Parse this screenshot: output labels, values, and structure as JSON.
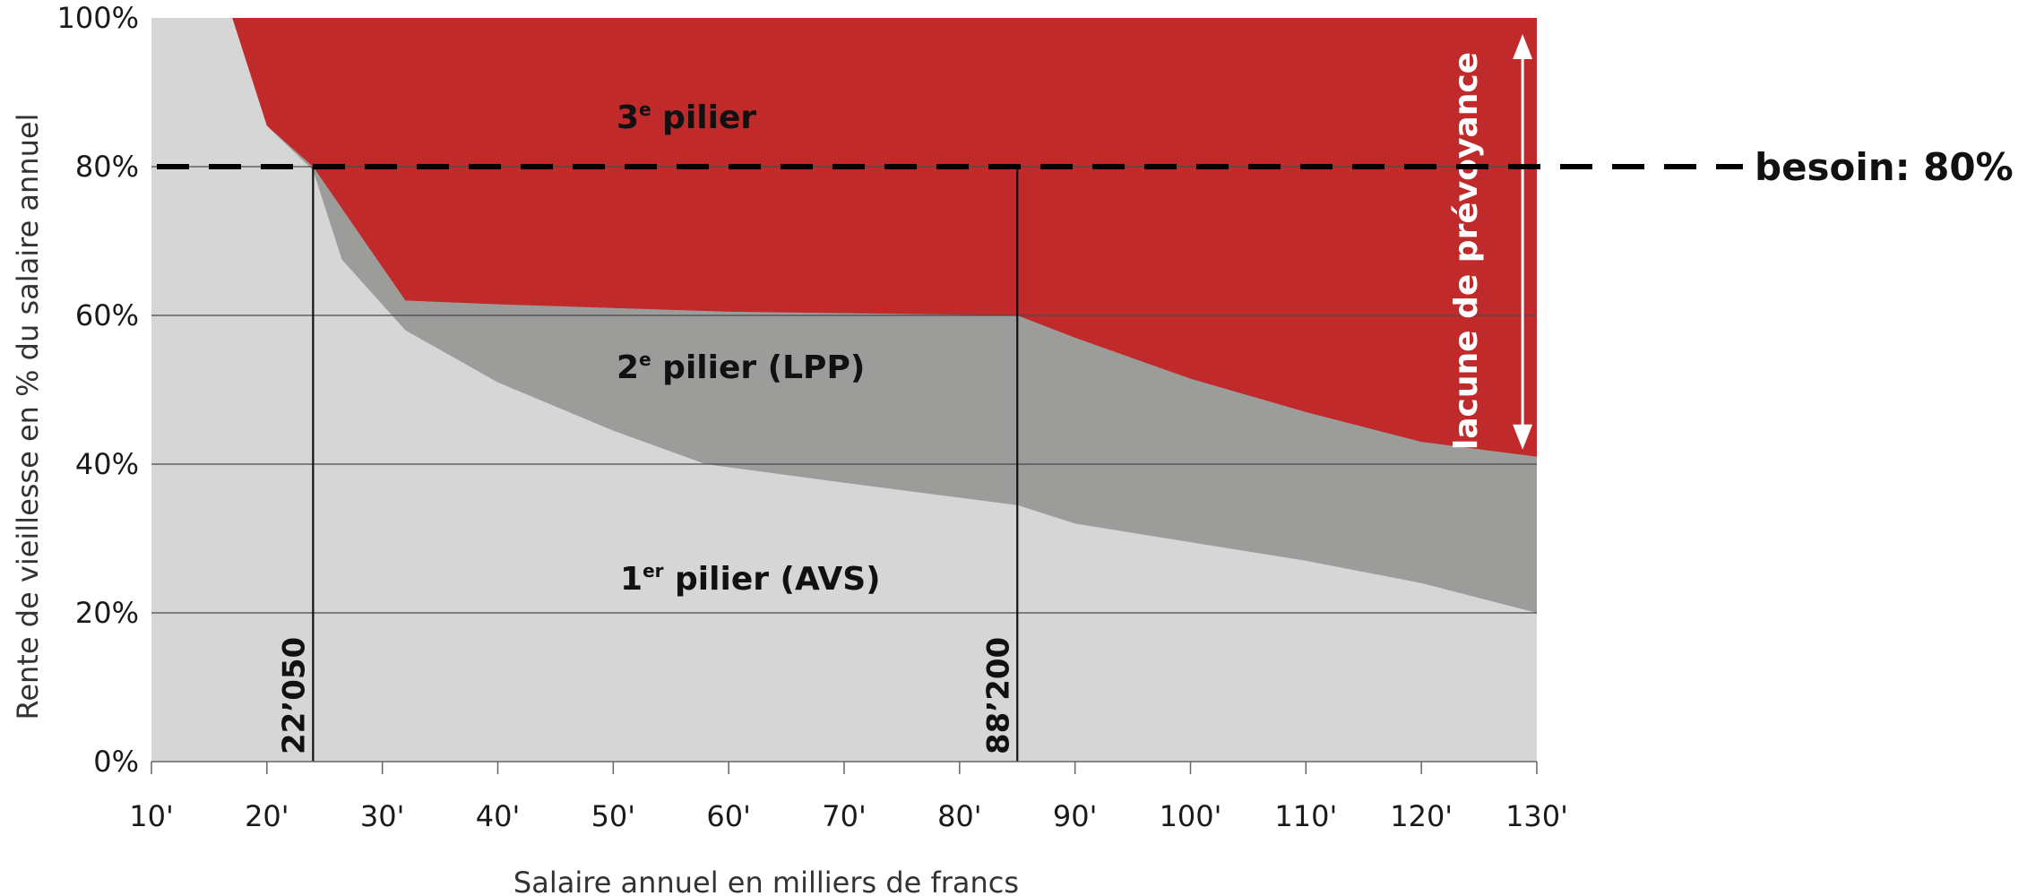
{
  "chart_data": {
    "type": "area",
    "title": "",
    "xlabel": "Salaire annuel en milliers de francs",
    "ylabel": "Rente de vieillesse en % du salaire annuel",
    "xlim": [
      10,
      130
    ],
    "ylim": [
      0,
      100
    ],
    "x_ticks": [
      10,
      20,
      30,
      40,
      50,
      60,
      70,
      80,
      90,
      100,
      110,
      120,
      130
    ],
    "x_tick_labels": [
      "10'",
      "20'",
      "30'",
      "40'",
      "50'",
      "60'",
      "70'",
      "80'",
      "90'",
      "100'",
      "110'",
      "120'",
      "130'"
    ],
    "y_ticks": [
      0,
      20,
      40,
      60,
      80,
      100
    ],
    "y_tick_labels": [
      "0%",
      "20%",
      "40%",
      "60%",
      "80%",
      "100%"
    ],
    "grid": "horizontal",
    "stack_mode": "cumulative",
    "series": [
      {
        "name_main": "1",
        "name_sup": "er",
        "name_rest": " pilier (AVS)",
        "color": "#d6d6d6",
        "x": [
          10,
          17,
          20,
          24,
          26.5,
          32,
          40,
          50,
          58,
          70,
          85,
          90,
          100,
          110,
          120,
          130
        ],
        "y": [
          100,
          100,
          85.5,
          79.5,
          67.5,
          58,
          51,
          44.5,
          40,
          37.5,
          34.5,
          32,
          29.5,
          27,
          24,
          20
        ]
      },
      {
        "name_main": "2",
        "name_sup": "e",
        "name_rest": " pilier (LPP)",
        "color": "#9c9c9a",
        "x": [
          10,
          17,
          20,
          24,
          32,
          40,
          50,
          60,
          70,
          85,
          90,
          100,
          110,
          120,
          130
        ],
        "y": [
          100,
          100,
          85.5,
          80,
          62,
          61.5,
          61,
          60.5,
          60.3,
          60,
          57,
          51.5,
          47,
          43,
          41
        ]
      },
      {
        "name_main": "3",
        "name_sup": "e",
        "name_rest": " pilier",
        "color": "#c12a2b",
        "x": [
          10,
          130
        ],
        "y": [
          100,
          100
        ]
      }
    ],
    "reference_line": {
      "y": 80,
      "label": "besoin: 80%",
      "style": "dashed"
    },
    "markers": [
      {
        "x": 24,
        "label": "22’050"
      },
      {
        "x": 85,
        "label": "88’200"
      }
    ],
    "gap_annotation": {
      "label": "lacune de prévoyance",
      "x": 129,
      "from_y": 100,
      "to_y": 41
    }
  }
}
